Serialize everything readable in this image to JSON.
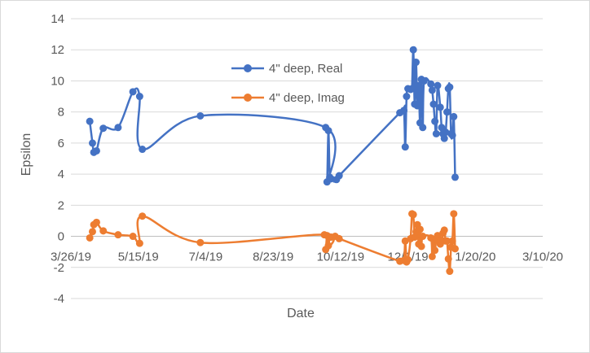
{
  "chart_data": {
    "type": "scatter",
    "xlabel": "Date",
    "ylabel": "Epsilon",
    "xlim": [
      "3/26/19",
      "3/10/20"
    ],
    "ylim": [
      -4,
      14
    ],
    "x_ticks": [
      "3/26/19",
      "5/15/19",
      "7/4/19",
      "8/23/19",
      "10/12/19",
      "12/1/19",
      "1/20/20",
      "3/10/20"
    ],
    "y_ticks": [
      14,
      12,
      10,
      8,
      6,
      4,
      2,
      0,
      -2,
      -4
    ],
    "grid": "horizontal",
    "legend": "inside-top-center",
    "smoothed_lines": true,
    "series": [
      {
        "name": "4\" deep, Real",
        "color": "#4472c4",
        "x": [
          "4/9/19",
          "4/11/19",
          "4/12/19",
          "4/14/19",
          "4/19/19",
          "4/30/19",
          "5/11/19",
          "5/16/19",
          "5/18/19",
          "6/30/19",
          "10/1/19",
          "10/2/19",
          "10/3/19",
          "10/4/19",
          "10/5/19",
          "10/9/19",
          "10/11/19",
          "11/25/19",
          "11/28/19",
          "11/29/19",
          "11/30/19",
          "12/1/19",
          "12/3/19",
          "12/4/19",
          "12/5/19",
          "12/6/19",
          "12/7/19",
          "12/8/19",
          "12/9/19",
          "12/10/19",
          "12/11/19",
          "12/12/19",
          "12/13/19",
          "12/18/19",
          "12/19/19",
          "12/20/19",
          "12/21/19",
          "12/22/19",
          "12/23/19",
          "12/25/19",
          "12/26/19",
          "12/27/19",
          "12/28/19",
          "12/29/19",
          "12/30/19",
          "12/31/19",
          "1/1/20",
          "1/2/20",
          "1/3/20",
          "1/4/20",
          "1/5/20"
        ],
        "y": [
          7.4,
          6.0,
          5.4,
          5.5,
          6.95,
          7.0,
          9.3,
          9.0,
          5.6,
          7.75,
          7.0,
          3.5,
          6.8,
          3.8,
          3.7,
          3.65,
          3.9,
          7.95,
          8.1,
          5.75,
          9.0,
          9.5,
          9.45,
          9.5,
          12.0,
          8.5,
          11.2,
          8.4,
          9.7,
          7.3,
          10.1,
          7.0,
          10.0,
          9.8,
          9.4,
          8.5,
          7.4,
          6.6,
          9.7,
          8.3,
          7.0,
          6.6,
          6.3,
          6.7,
          8.0,
          9.5,
          9.6,
          6.6,
          6.5,
          7.7,
          3.8
        ]
      },
      {
        "name": "4\" deep, Imag",
        "color": "#ed7d31",
        "x": [
          "4/9/19",
          "4/11/19",
          "4/12/19",
          "4/14/19",
          "4/19/19",
          "4/30/19",
          "5/11/19",
          "5/16/19",
          "5/18/19",
          "6/30/19",
          "9/30/19",
          "10/1/19",
          "10/2/19",
          "10/3/19",
          "10/4/19",
          "10/5/19",
          "10/8/19",
          "10/11/19",
          "11/25/19",
          "11/28/19",
          "11/29/19",
          "11/30/19",
          "12/1/19",
          "12/3/19",
          "12/4/19",
          "12/5/19",
          "12/6/19",
          "12/7/19",
          "12/8/19",
          "12/9/19",
          "12/10/19",
          "12/11/19",
          "12/12/19",
          "12/18/19",
          "12/19/19",
          "12/20/19",
          "12/21/19",
          "12/22/19",
          "12/23/19",
          "12/25/19",
          "12/26/19",
          "12/27/19",
          "12/28/19",
          "12/29/19",
          "12/30/19",
          "12/31/19",
          "1/1/20",
          "1/2/20",
          "1/3/20",
          "1/4/20",
          "1/5/20"
        ],
        "y": [
          -0.1,
          0.3,
          0.75,
          0.9,
          0.35,
          0.1,
          0.0,
          -0.45,
          1.3,
          -0.4,
          0.1,
          -0.85,
          0.05,
          -0.6,
          -0.05,
          -0.05,
          0.0,
          -0.15,
          -1.6,
          -1.55,
          -0.3,
          -1.65,
          -1.5,
          -0.15,
          1.45,
          1.4,
          -0.05,
          0.3,
          0.75,
          -0.5,
          0.45,
          -0.65,
          0.0,
          -0.1,
          -1.3,
          -0.2,
          -0.9,
          -0.2,
          0.05,
          -0.5,
          -0.25,
          0.2,
          0.4,
          -0.3,
          -0.3,
          -1.45,
          -2.25,
          -0.7,
          -0.3,
          1.45,
          -0.8
        ]
      }
    ]
  }
}
